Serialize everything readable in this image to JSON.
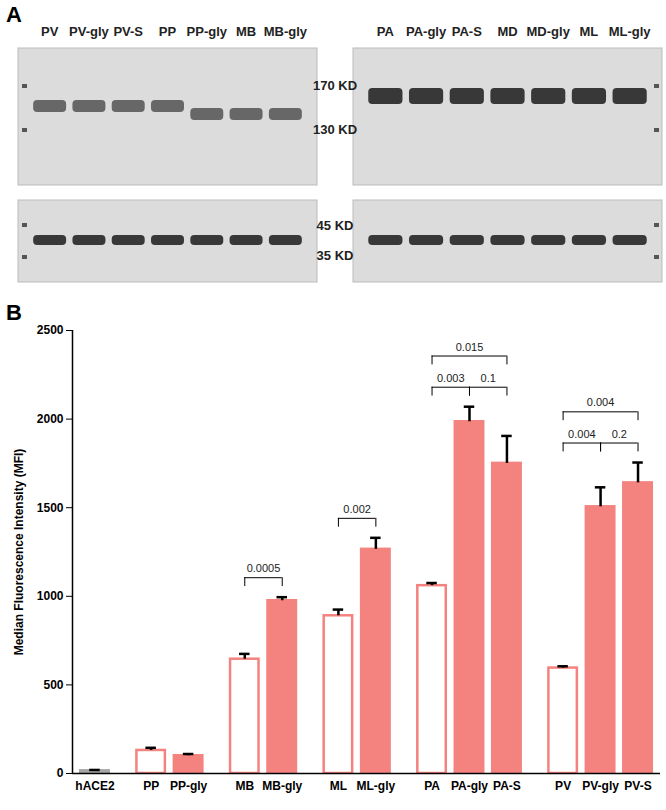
{
  "panel_a": {
    "label": "A",
    "blots": [
      {
        "lanes": [
          "PV",
          "PV-gly",
          "PV-S",
          "PP",
          "PP-gly",
          "MB",
          "MB-gly"
        ]
      },
      {
        "lanes": [
          "PA",
          "PA-gly",
          "PA-S",
          "MD",
          "MD-gly",
          "ML",
          "ML-gly"
        ]
      }
    ],
    "markers_upper": [
      "170 KD",
      "130 KD"
    ],
    "markers_lower": [
      "45 KD",
      "35 KD"
    ]
  },
  "chart_data": {
    "type": "bar",
    "title": "B",
    "y_label": "Median Fluorescence Intensity (MFI)",
    "categories": [
      "hACE2",
      "PP",
      "PP-gly",
      "MB",
      "MB-gly",
      "ML",
      "ML-gly",
      "PA",
      "PA-gly",
      "PA-S",
      "PV",
      "PV-gly",
      "PV-S"
    ],
    "values": [
      15,
      130,
      100,
      645,
      975,
      890,
      1265,
      1060,
      1985,
      1750,
      595,
      1505,
      1640
    ],
    "errors": [
      5,
      15,
      10,
      30,
      20,
      35,
      65,
      15,
      85,
      155,
      10,
      110,
      115
    ],
    "color": "#f4837f",
    "colors": [
      "#a6a6a6",
      "#ffffff",
      "#f4837f",
      "#ffffff",
      "#f4837f",
      "#ffffff",
      "#f4837f",
      "#ffffff",
      "#f4837f",
      "#f4837f",
      "#ffffff",
      "#f4837f",
      "#f4837f"
    ],
    "ylim": [
      0,
      2500
    ],
    "yticks": [
      0,
      500,
      1000,
      1500,
      2000,
      2500
    ],
    "annotations": [
      {
        "from": "MB",
        "to": "MB-gly",
        "text": "0.0005"
      },
      {
        "from": "ML",
        "to": "ML-gly",
        "text": "0.002"
      },
      {
        "from": "PA",
        "to": "PA-gly",
        "text": "0.003"
      },
      {
        "from": "PA-gly",
        "to": "PA-S",
        "text": "0.1"
      },
      {
        "from": "PA",
        "to": "PA-S",
        "text": "0.015"
      },
      {
        "from": "PV",
        "to": "PV-gly",
        "text": "0.004"
      },
      {
        "from": "PV-gly",
        "to": "PV-S",
        "text": "0.2"
      },
      {
        "from": "PV",
        "to": "PV-S",
        "text": "0.004"
      }
    ],
    "grid": false
  }
}
